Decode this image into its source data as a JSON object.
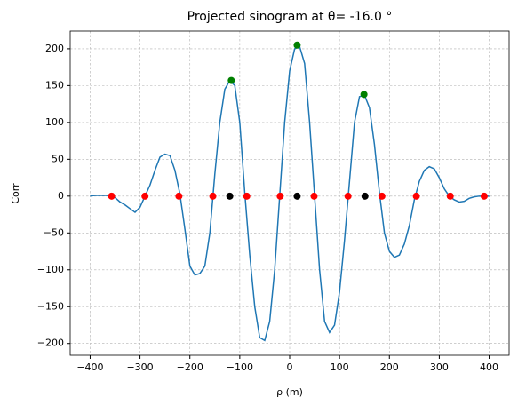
{
  "chart_data": {
    "type": "line",
    "title": "Projected sinogram at θ= -16.0 °",
    "xlabel": "ρ (m)",
    "ylabel": "Corr",
    "series": [
      {
        "color": "#1f77b4",
        "x": [
          -400,
          -390,
          -380,
          -370,
          -360,
          -350,
          -340,
          -330,
          -320,
          -310,
          -300,
          -290,
          -280,
          -270,
          -260,
          -250,
          -240,
          -230,
          -220,
          -210,
          -200,
          -190,
          -180,
          -170,
          -160,
          -150,
          -140,
          -130,
          -120,
          -110,
          -100,
          -90,
          -80,
          -70,
          -60,
          -50,
          -40,
          -30,
          -20,
          -10,
          0,
          10,
          20,
          30,
          40,
          50,
          60,
          70,
          80,
          90,
          100,
          110,
          120,
          130,
          140,
          150,
          160,
          170,
          180,
          190,
          200,
          210,
          220,
          230,
          240,
          250,
          260,
          270,
          280,
          290,
          300,
          310,
          320,
          330,
          340,
          350,
          360,
          370,
          380,
          390,
          400
        ],
        "values": [
          0,
          1,
          1,
          1,
          1,
          -2,
          -8,
          -12,
          -17,
          -22,
          -15,
          0,
          15,
          35,
          53,
          57,
          55,
          35,
          3,
          -45,
          -95,
          -107,
          -105,
          -95,
          -50,
          30,
          100,
          145,
          157,
          150,
          100,
          5,
          -80,
          -150,
          -192,
          -196,
          -170,
          -100,
          0,
          100,
          170,
          200,
          203,
          180,
          100,
          0,
          -100,
          -170,
          -185,
          -175,
          -130,
          -60,
          20,
          100,
          135,
          137,
          120,
          70,
          5,
          -50,
          -75,
          -83,
          -80,
          -65,
          -40,
          -5,
          20,
          35,
          40,
          37,
          25,
          10,
          0,
          -5,
          -8,
          -7,
          -3,
          -1,
          0,
          0,
          0
        ]
      }
    ],
    "markers": [
      {
        "color": "#ff0000",
        "x": [
          -357,
          -290,
          -222,
          -154,
          -86,
          -19,
          49,
          117,
          185,
          254,
          322,
          390
        ],
        "values": [
          0,
          0,
          0,
          0,
          0,
          0,
          0,
          0,
          0,
          0,
          0,
          0
        ]
      },
      {
        "color": "#000000",
        "x": [
          -120,
          15,
          151
        ],
        "values": [
          0,
          0,
          0
        ]
      },
      {
        "color": "#008000",
        "x": [
          -117,
          15,
          149
        ],
        "values": [
          157,
          205,
          138
        ]
      }
    ],
    "xlim": [
      -440,
      440
    ],
    "ylim": [
      -216,
      224
    ],
    "xticks": [
      {
        "value": -400,
        "label": "−400"
      },
      {
        "value": -300,
        "label": "−300"
      },
      {
        "value": -200,
        "label": "−200"
      },
      {
        "value": -100,
        "label": "−100"
      },
      0,
      100,
      200,
      300,
      400
    ],
    "yticks": [
      {
        "value": -200,
        "label": "−200"
      },
      {
        "value": -150,
        "label": "−150"
      },
      {
        "value": -100,
        "label": "−100"
      },
      {
        "value": -50,
        "label": "−50"
      },
      0,
      50,
      100,
      150,
      200
    ],
    "grid": true
  }
}
